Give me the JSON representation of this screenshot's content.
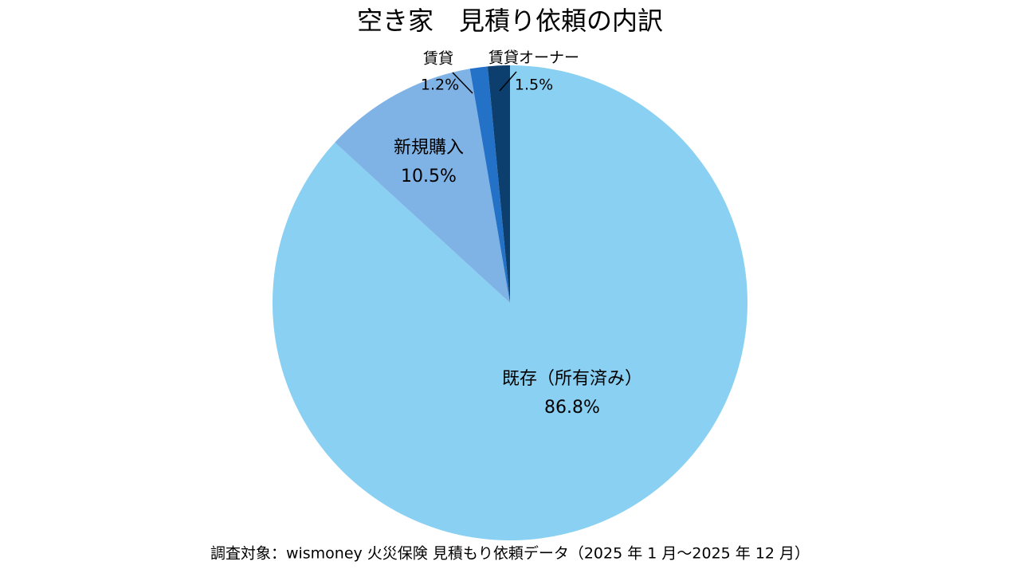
{
  "chart_data": {
    "type": "pie",
    "title": "空き家　見積り依頼の内訳",
    "categories": [
      "既存（所有済み）",
      "新規購入",
      "賃貸",
      "賃貸オーナー"
    ],
    "values": [
      86.8,
      10.5,
      1.2,
      1.5
    ],
    "value_labels": [
      "86.8%",
      "10.5%",
      "1.2%",
      "1.5%"
    ],
    "colors": [
      "#89d0f2",
      "#7fb2e5",
      "#2472c8",
      "#0d3f6e"
    ],
    "source": "調査対象：wismoney 火災保険 見積もり依頼データ（2025 年 1 月～2025 年 12 月）"
  }
}
